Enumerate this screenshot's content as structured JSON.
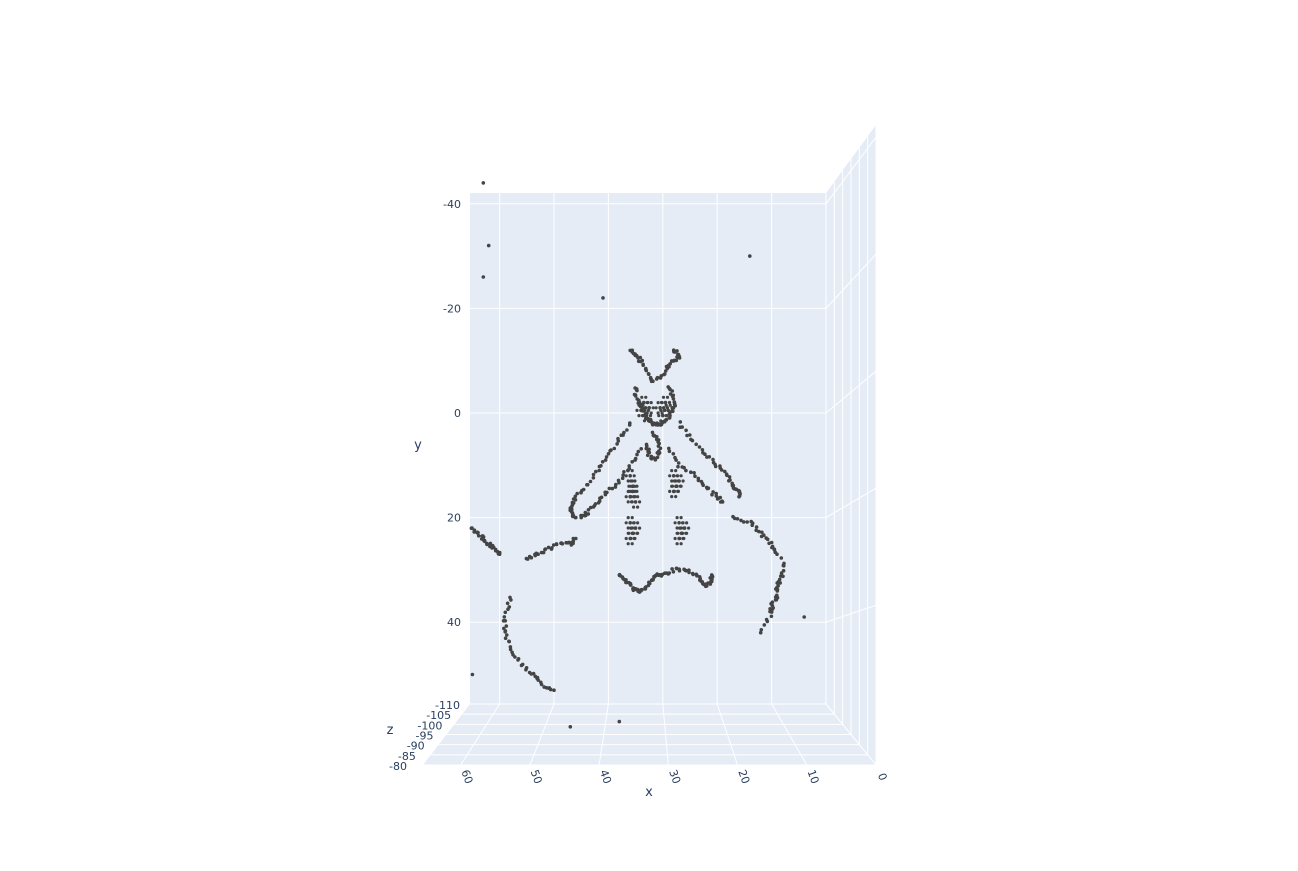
{
  "chart_data": {
    "type": "scatter",
    "title": "",
    "marker_color": "#444444",
    "plane_color": "#e5ecf6",
    "grid_color": "#ffffff",
    "axes": {
      "x": {
        "label": "x",
        "range": [
          0,
          65
        ],
        "ticks": [
          "60",
          "50",
          "40",
          "30",
          "20",
          "10",
          "0"
        ]
      },
      "y": {
        "label": "y",
        "range": [
          -42,
          52
        ],
        "ticks": [
          "-40",
          "-20",
          "0",
          "20",
          "40"
        ]
      },
      "z": {
        "label": "z",
        "range": [
          -110,
          -80
        ],
        "ticks": [
          "-110",
          "-105",
          "-100",
          "-95",
          "-90",
          "-85",
          "-80"
        ]
      }
    },
    "shape_description_points": {
      "head_ears": [
        [
          36,
          -12
        ],
        [
          35,
          -11
        ],
        [
          34,
          -10
        ],
        [
          33,
          -8
        ],
        [
          32,
          -6
        ],
        [
          30,
          -7
        ],
        [
          29,
          -9
        ],
        [
          28,
          -10
        ],
        [
          27,
          -11
        ],
        [
          28,
          -12
        ]
      ],
      "head_outline": [
        [
          35,
          -5
        ],
        [
          35,
          -3
        ],
        [
          34,
          -1
        ],
        [
          33,
          1
        ],
        [
          32,
          2
        ],
        [
          31,
          2
        ],
        [
          30,
          2
        ],
        [
          29,
          1
        ],
        [
          28,
          -1
        ],
        [
          28,
          -3
        ],
        [
          29,
          -5
        ]
      ],
      "eyes": [
        [
          33.5,
          -2
        ],
        [
          32.5,
          -1
        ],
        [
          33,
          0.5
        ],
        [
          34,
          -0.5
        ],
        [
          29.5,
          -2
        ],
        [
          30.5,
          -1
        ],
        [
          30,
          0.5
        ],
        [
          29,
          -0.5
        ]
      ],
      "snout": [
        [
          32,
          4
        ],
        [
          31,
          5
        ],
        [
          30.5,
          7
        ],
        [
          31.5,
          9
        ],
        [
          32.5,
          8
        ],
        [
          33,
          6
        ]
      ],
      "left_arm_outer": [
        [
          36,
          2
        ],
        [
          38,
          5
        ],
        [
          40,
          8
        ],
        [
          42,
          11
        ],
        [
          44,
          14
        ],
        [
          46,
          16
        ],
        [
          47,
          18
        ],
        [
          47,
          19
        ],
        [
          46,
          20
        ]
      ],
      "left_arm_inner": [
        [
          34,
          7
        ],
        [
          36,
          10
        ],
        [
          38,
          13
        ],
        [
          40,
          15
        ],
        [
          42,
          17
        ],
        [
          44,
          19
        ],
        [
          45,
          20
        ]
      ],
      "right_arm_outer": [
        [
          27,
          2
        ],
        [
          25,
          5
        ],
        [
          22,
          8
        ],
        [
          20,
          10
        ],
        [
          18,
          12
        ],
        [
          17,
          14
        ],
        [
          16,
          15
        ],
        [
          16,
          16
        ]
      ],
      "right_arm_inner": [
        [
          29,
          7
        ],
        [
          27,
          10
        ],
        [
          24,
          12
        ],
        [
          22,
          14
        ],
        [
          20,
          16
        ],
        [
          19,
          17
        ]
      ],
      "body_spots": [
        [
          36,
          12
        ],
        [
          35.5,
          14
        ],
        [
          36,
          16
        ],
        [
          35,
          17
        ],
        [
          35.5,
          15
        ],
        [
          28,
          12
        ],
        [
          27.5,
          14
        ],
        [
          28,
          15
        ],
        [
          27,
          13
        ],
        [
          36,
          21
        ],
        [
          35.5,
          23
        ],
        [
          36,
          24
        ],
        [
          35,
          22
        ],
        [
          27,
          21
        ],
        [
          26.5,
          23
        ],
        [
          27,
          24
        ],
        [
          26,
          22
        ]
      ],
      "feet": [
        [
          38,
          31
        ],
        [
          37,
          32
        ],
        [
          36,
          33
        ],
        [
          35,
          34
        ],
        [
          34,
          34
        ],
        [
          33,
          33
        ],
        [
          32,
          32
        ],
        [
          31,
          31
        ],
        [
          30,
          31
        ],
        [
          28,
          30
        ],
        [
          26,
          30
        ],
        [
          24,
          31
        ],
        [
          23,
          32
        ],
        [
          22,
          33
        ],
        [
          21,
          32
        ],
        [
          21,
          31
        ]
      ],
      "base_curve_left": [
        [
          58,
          35
        ],
        [
          59,
          39
        ],
        [
          59,
          42
        ],
        [
          58,
          45
        ],
        [
          56,
          48
        ],
        [
          54,
          50
        ],
        [
          52,
          52
        ],
        [
          50,
          53
        ]
      ],
      "base_curve_right": [
        [
          8,
          28
        ],
        [
          8,
          31
        ],
        [
          9,
          33
        ],
        [
          9,
          35
        ],
        [
          10,
          37
        ],
        [
          10,
          38
        ],
        [
          12,
          42
        ]
      ],
      "base_top_left": [
        [
          55,
          28
        ],
        [
          53,
          27
        ],
        [
          51,
          26
        ],
        [
          49,
          25
        ],
        [
          47,
          25
        ],
        [
          46,
          24
        ]
      ],
      "base_top_right": [
        [
          17,
          20
        ],
        [
          14,
          21
        ],
        [
          12,
          23
        ],
        [
          10,
          25
        ],
        [
          9,
          27
        ]
      ],
      "left_streak": [
        [
          65,
          22
        ],
        [
          64,
          23
        ],
        [
          63,
          24
        ],
        [
          62,
          25
        ],
        [
          61,
          26
        ],
        [
          60,
          27
        ]
      ],
      "outliers": [
        [
          63,
          -44
        ],
        [
          62,
          -32
        ],
        [
          63,
          -26
        ],
        [
          41,
          -22
        ],
        [
          14,
          -30
        ],
        [
          4,
          39
        ],
        [
          65,
          50
        ],
        [
          47,
          60
        ],
        [
          38,
          59
        ]
      ]
    }
  }
}
